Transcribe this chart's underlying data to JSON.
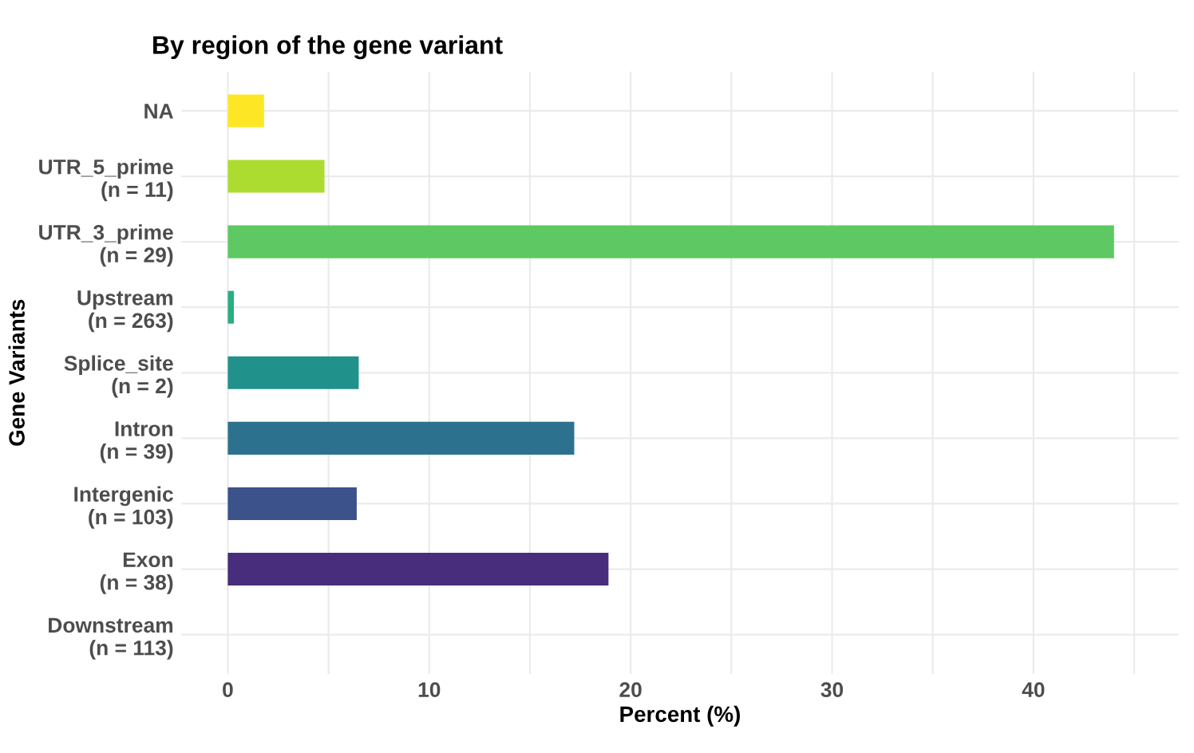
{
  "chart_data": {
    "type": "bar",
    "orientation": "horizontal",
    "title": "By region of the gene variant",
    "xlabel": "Percent (%)",
    "ylabel": "Gene Variants",
    "categories": [
      "NA",
      "UTR_5_prime\n(n = 11)",
      "UTR_3_prime\n(n = 29)",
      "Upstream\n(n = 263)",
      "Splice_site\n(n = 2)",
      "Intron\n(n = 39)",
      "Intergenic\n(n = 103)",
      "Exon\n(n = 38)",
      "Downstream\n(n = 113)"
    ],
    "values": [
      1.8,
      4.8,
      44.0,
      0.3,
      6.5,
      17.2,
      6.4,
      18.9,
      0
    ],
    "colors": [
      "#fde725",
      "#addc30",
      "#5ec962",
      "#28ae80",
      "#21918c",
      "#2c728e",
      "#3b528b",
      "#472d7b",
      "#440154"
    ],
    "xlim": [
      -2.3,
      47.2
    ],
    "xticks": [
      0,
      {
        "value": 5,
        "label": null
      },
      10,
      {
        "value": 15,
        "label": null
      },
      20,
      {
        "value": 25,
        "label": null
      },
      30,
      {
        "value": 35,
        "label": null
      },
      40,
      {
        "value": 45,
        "label": null
      }
    ],
    "grid": true
  }
}
